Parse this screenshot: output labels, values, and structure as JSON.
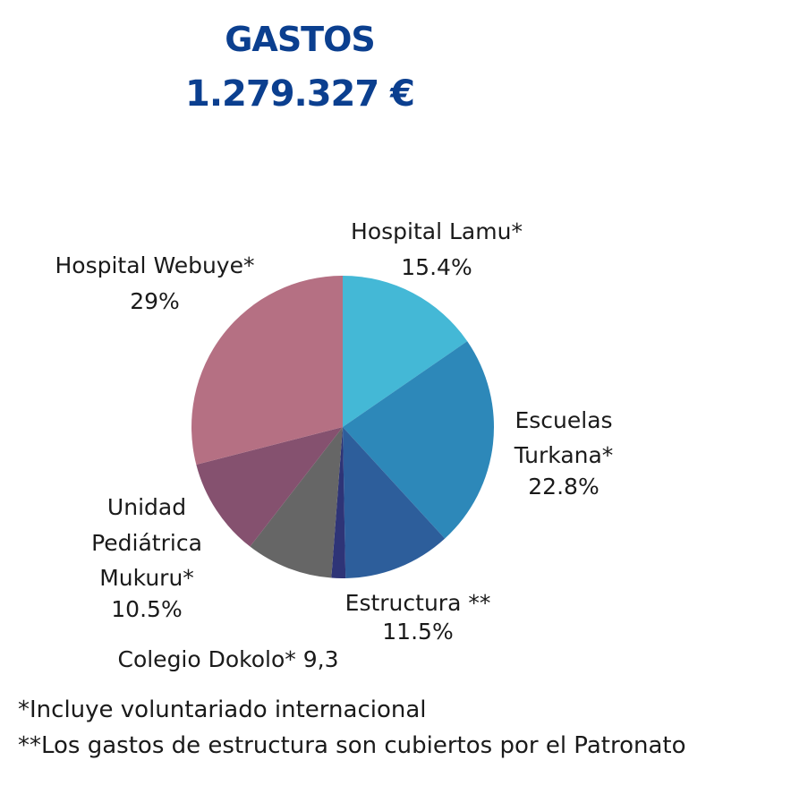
{
  "header": {
    "title": "GASTOS",
    "total": "1.279.327 €"
  },
  "chart_data": {
    "type": "pie",
    "title": "GASTOS",
    "subtitle": "1.279.327 €",
    "slices": [
      {
        "label": "Hospital Lamu*",
        "display": "15.4%",
        "value": 15.4,
        "color": "#44b8d6"
      },
      {
        "label": "Escuelas Turkana*",
        "display": "22.8%",
        "value": 22.8,
        "color": "#2d88b9"
      },
      {
        "label": "Estructura **",
        "display": "11.5%",
        "value": 11.5,
        "color": "#2d5e9b"
      },
      {
        "label": "",
        "display": "",
        "value": 1.5,
        "color": "#2e3477"
      },
      {
        "label": "Colegio Dokolo*",
        "display": "9,3",
        "value": 9.3,
        "color": "#666666"
      },
      {
        "label": "Unidad Pediátrica Mukuru*",
        "display": "10.5%",
        "value": 10.5,
        "color": "#85516f"
      },
      {
        "label": "Hospital Webuye*",
        "display": "29%",
        "value": 29,
        "color": "#b57083"
      }
    ],
    "label_lines": {
      "lamu": [
        "Hospital Lamu*",
        "15.4%"
      ],
      "turkana": [
        "Escuelas",
        "Turkana*",
        "22.8%"
      ],
      "estructura": [
        "Estructura **",
        "11.5%"
      ],
      "dokolo": [
        "Colegio Dokolo* 9,3"
      ],
      "mukuru": [
        "Unidad",
        "Pediátrica",
        "Mukuru*",
        "10.5%"
      ],
      "webuye": [
        "Hospital Webuye*",
        "29%"
      ]
    }
  },
  "footnotes": {
    "note1": "*Incluye voluntariado internacional",
    "note2": "**Los gastos de estructura son cubiertos por el Patronato"
  }
}
